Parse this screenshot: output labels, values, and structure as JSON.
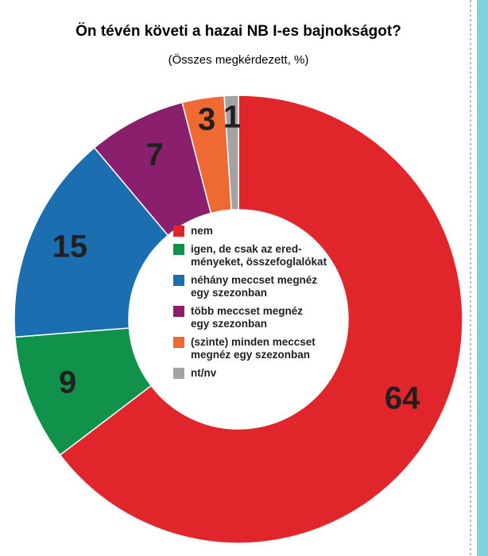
{
  "chart_data": {
    "type": "donut",
    "title": "Ön tévén követi a hazai NB I-es bajnokságot?",
    "subtitle": "(Összes megkérdezett, %)",
    "categories": [
      "nem",
      "igen, de csak az ered-\nményeket, összefoglalókat",
      "néhány meccset megnéz\negy szezonban",
      "több meccset megnéz\negy szezonban",
      "(szinte) minden meccset\nmegnéz egy szezonban",
      "nt/nv"
    ],
    "values": [
      64,
      9,
      15,
      7,
      3,
      1
    ],
    "colors": [
      "#e1262b",
      "#11924a",
      "#1b6fb0",
      "#8a1f6e",
      "#ef6a33",
      "#a3a3a3"
    ]
  }
}
